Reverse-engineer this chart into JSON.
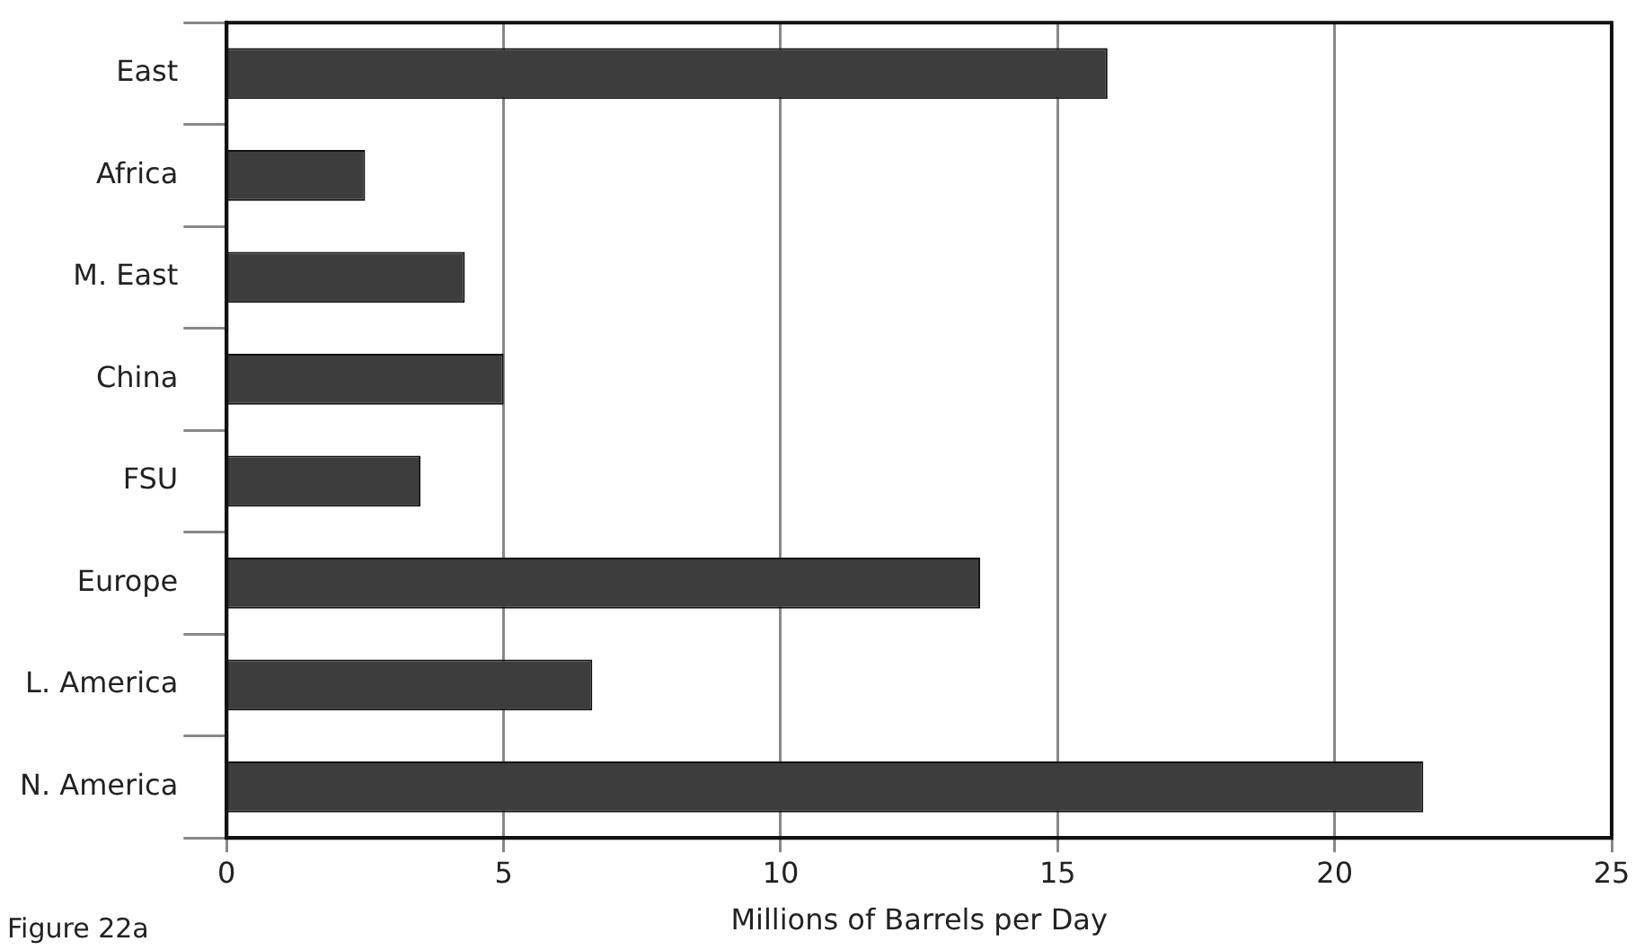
{
  "chart_data": {
    "type": "bar",
    "orientation": "horizontal",
    "categories": [
      "East",
      "Africa",
      "M. East",
      "China",
      "FSU",
      "Europe",
      "L. America",
      "N. America"
    ],
    "values": [
      15.9,
      2.5,
      4.3,
      5.0,
      3.5,
      13.6,
      6.6,
      21.6
    ],
    "color": "#3d3d3d",
    "xlim": [
      0,
      25
    ],
    "xticks": [
      0,
      5,
      10,
      15,
      20,
      25
    ],
    "xlabel": "Millions of Barrels per Day",
    "grid": "x",
    "legend": false,
    "annotations": [
      "Figure 22a"
    ]
  }
}
